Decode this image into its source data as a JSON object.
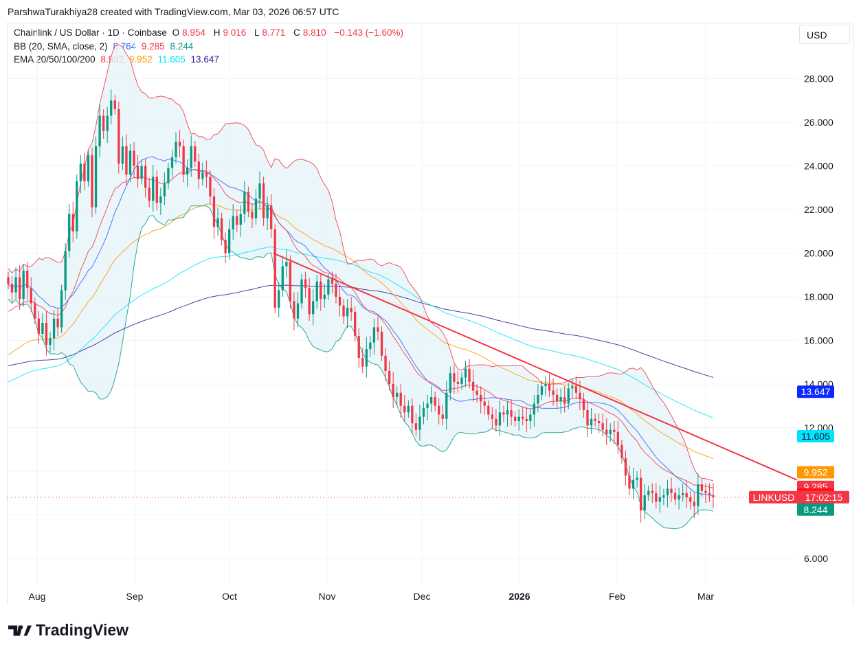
{
  "header": {
    "credit": "ParshwaTurakhiya28 created with TradingView.com, Mar 03, 2026 06:57 UTC"
  },
  "legend": {
    "symbol": "Chainlink / US Dollar · 1D · Coinbase",
    "o_label": "O",
    "o": "8.954",
    "h_label": "H",
    "h": "9.016",
    "l_label": "L",
    "l": "8.771",
    "c_label": "C",
    "c": "8.810",
    "change": "−0.143 (−1.60%)",
    "bb_label": "BB (20, SMA, close, 2)",
    "bb_basis": "8.764",
    "bb_upper": "9.285",
    "bb_lower": "8.244",
    "ema_label": "EMA 20/50/100/200",
    "ema20": "8.932",
    "ema50": "9.952",
    "ema100": "11.605",
    "ema200": "13.647"
  },
  "currency": "USD",
  "branding": {
    "logo_text": "TradingView"
  },
  "colors": {
    "up": "#089981",
    "down": "#f23645",
    "bb_basis": "#2962ff",
    "bb_upper": "#f23645",
    "bb_lower": "#089981",
    "bb_fill": "#e6f4f9",
    "ema20": "#f23645",
    "ema50": "#ff9800",
    "ema100": "#00e5ff",
    "ema200": "#311b92",
    "trendline": "#f23645"
  },
  "chart_data": {
    "type": "candlestick",
    "symbol": "LINKUSD",
    "y_ticks": [
      "6.000",
      "12.000",
      "14.000",
      "16.000",
      "18.000",
      "20.000",
      "22.000",
      "24.000",
      "26.000",
      "28.000"
    ],
    "x_ticks": [
      "Aug",
      "Sep",
      "Oct",
      "Nov",
      "Dec",
      "2026",
      "Feb",
      "Mar"
    ],
    "price_labels": [
      {
        "name": "EMA 200",
        "value": "13.647",
        "color": "#0d28ff",
        "y": 13.647
      },
      {
        "name": "EMA 100",
        "value": "11.605",
        "color": "#00e5ff",
        "y": 11.605
      },
      {
        "name": "EMA 50",
        "value": "9.952",
        "color": "#ff9800",
        "y": 9.952
      },
      {
        "name": "BB upper",
        "value": "9.285",
        "color": "#f23645",
        "y": 9.285
      },
      {
        "name": "EMA 20",
        "value": "8.932",
        "color": "#ff1212",
        "y": 8.932
      },
      {
        "name": "BB basis",
        "value": "8.764",
        "color": "#2962ff",
        "y": 8.764
      },
      {
        "name": "BB lower",
        "value": "8.244",
        "color": "#089981",
        "y": 8.244
      }
    ],
    "last_price_tag": {
      "symbol": "LINKUSD",
      "countdown": "17:02:15",
      "y": 8.81
    },
    "trendline": [
      {
        "t": 0.336,
        "y": 20.0
      },
      {
        "t": 1.0,
        "y": 9.6
      }
    ],
    "closes": [
      18.6,
      18.2,
      18.9,
      17.9,
      19.2,
      18.4,
      17.7,
      17.0,
      16.3,
      16.8,
      15.8,
      16.1,
      17.0,
      16.6,
      18.3,
      20.1,
      21.8,
      21.0,
      23.3,
      24.1,
      23.3,
      24.5,
      22.1,
      24.9,
      26.3,
      25.6,
      26.3,
      27.0,
      26.6,
      24.1,
      24.9,
      23.6,
      24.7,
      24.0,
      23.4,
      24.0,
      23.0,
      22.4,
      23.5,
      22.3,
      22.6,
      23.2,
      23.9,
      24.4,
      25.1,
      24.9,
      23.6,
      23.9,
      24.9,
      24.2,
      23.4,
      23.7,
      23.5,
      22.6,
      21.2,
      21.6,
      20.6,
      20.0,
      21.1,
      21.7,
      21.3,
      21.8,
      22.8,
      21.9,
      21.6,
      22.5,
      23.2,
      21.6,
      22.2,
      21.1,
      17.5,
      18.3,
      19.4,
      19.6,
      17.8,
      17.0,
      17.7,
      18.8,
      18.4,
      17.2,
      17.8,
      18.7,
      17.9,
      18.1,
      18.8,
      18.6,
      18.0,
      17.6,
      17.1,
      17.5,
      17.3,
      16.2,
      15.2,
      14.8,
      15.6,
      15.9,
      16.6,
      16.4,
      15.3,
      14.6,
      14.0,
      13.4,
      13.6,
      13.0,
      12.7,
      13.0,
      12.2,
      11.9,
      12.5,
      12.9,
      13.1,
      13.4,
      13.0,
      12.6,
      12.4,
      13.6,
      14.5,
      14.1,
      14.0,
      14.3,
      14.7,
      14.1,
      13.7,
      13.5,
      13.2,
      13.0,
      12.6,
      12.4,
      12.1,
      12.7,
      12.6,
      12.8,
      12.5,
      12.3,
      12.5,
      12.4,
      12.3,
      12.6,
      13.1,
      13.5,
      13.9,
      14.0,
      13.7,
      13.5,
      13.2,
      13.4,
      13.1,
      13.8,
      13.9,
      13.6,
      13.3,
      12.8,
      12.1,
      12.4,
      12.3,
      12.2,
      11.9,
      11.7,
      11.9,
      11.8,
      11.2,
      10.6,
      9.8,
      9.2,
      9.6,
      9.7,
      8.2,
      8.9,
      9.1,
      9.0,
      8.6,
      8.8,
      8.9,
      9.2,
      9.0,
      8.7,
      8.9,
      9.0,
      8.8,
      8.6,
      8.4,
      9.4,
      9.1,
      9.0,
      8.9,
      8.81
    ],
    "bb_upper": [],
    "bb_lower": []
  }
}
